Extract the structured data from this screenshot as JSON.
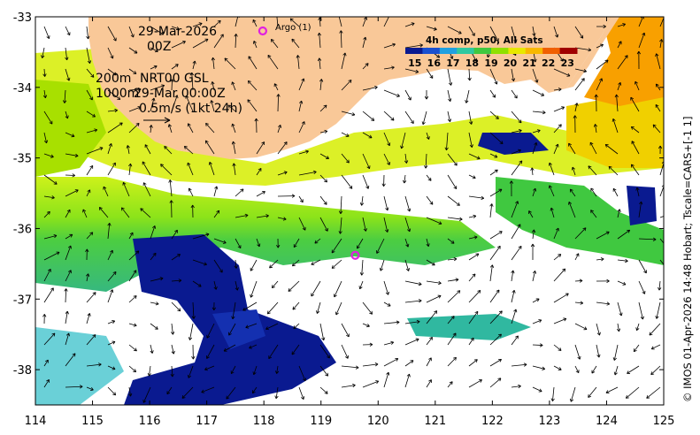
{
  "annotations": {
    "date": "29-Mar-2026",
    "hour": "00Z",
    "depth_line1_depth": "200m",
    "depth_line1_text": "NRT00 GSL",
    "depth_line2_depth": "1000m",
    "depth_line2_text": "29-Mar 00:00Z",
    "scale_text": "0.5m/s (1kt 24h)",
    "argo_label": "Argo (1)"
  },
  "colorbar": {
    "title": "4h comp, p50, All Sats",
    "ticks": [
      "15",
      "16",
      "17",
      "18",
      "19",
      "20",
      "21",
      "22",
      "23"
    ],
    "min": 14.5,
    "max": 23.5
  },
  "credit": "© IMOS 01-Apr-2026 14:48 Hobart; Tscale=CARS+[-1 1]",
  "map": {
    "lon_range": [
      114,
      125
    ],
    "lat_range": [
      -38.5,
      -33
    ],
    "x_ticks": [
      "114",
      "115",
      "116",
      "117",
      "118",
      "119",
      "120",
      "121",
      "122",
      "123",
      "124",
      "125"
    ],
    "y_ticks": [
      "-33",
      "-34",
      "-35",
      "-36",
      "-37",
      "-38"
    ],
    "land_color": "#f9c898",
    "argo_color": "#e020e0",
    "argo_floats": [
      {
        "lon": 117.98,
        "lat": -33.2
      },
      {
        "lon": 119.6,
        "lat": -36.38
      }
    ]
  }
}
